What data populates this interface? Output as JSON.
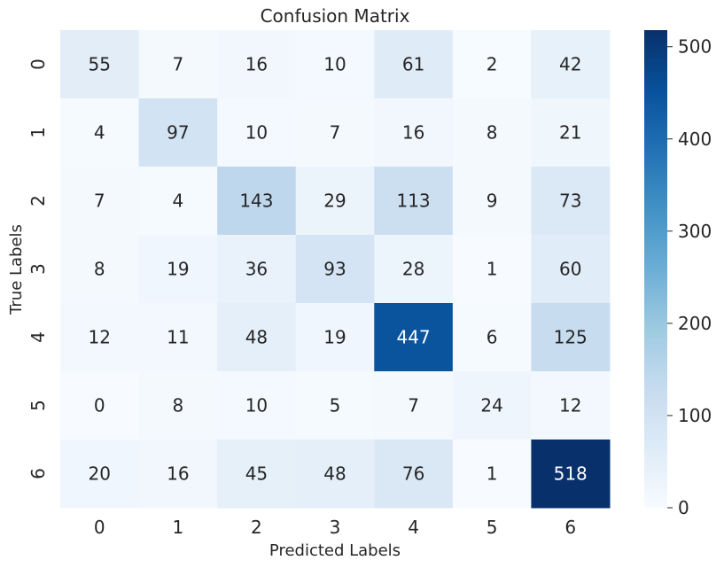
{
  "chart_data": {
    "type": "heatmap",
    "title": "Confusion Matrix",
    "xlabel": "Predicted Labels",
    "ylabel": "True Labels",
    "x_categories": [
      "0",
      "1",
      "2",
      "3",
      "4",
      "5",
      "6"
    ],
    "y_categories": [
      "0",
      "1",
      "2",
      "3",
      "4",
      "5",
      "6"
    ],
    "values": [
      [
        55,
        7,
        16,
        10,
        61,
        2,
        42
      ],
      [
        4,
        97,
        10,
        7,
        16,
        8,
        21
      ],
      [
        7,
        4,
        143,
        29,
        113,
        9,
        73
      ],
      [
        8,
        19,
        36,
        93,
        28,
        1,
        60
      ],
      [
        12,
        11,
        48,
        19,
        447,
        6,
        125
      ],
      [
        0,
        8,
        10,
        5,
        7,
        24,
        12
      ],
      [
        20,
        16,
        45,
        48,
        76,
        1,
        518
      ]
    ],
    "colorscale": "Blues",
    "colorbar": {
      "range": [
        0,
        518
      ],
      "ticks": [
        0,
        100,
        200,
        300,
        400,
        500
      ]
    }
  }
}
